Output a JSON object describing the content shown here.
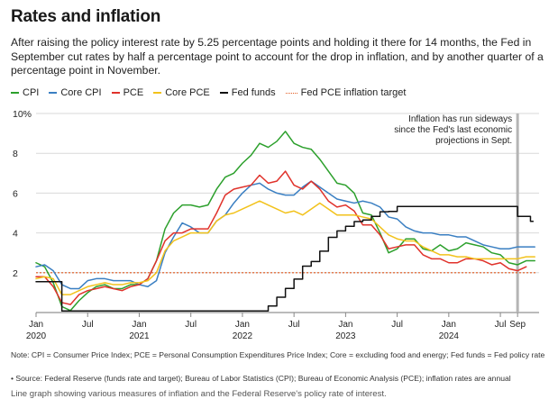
{
  "header": {
    "title": "Rates and inflation",
    "subtitle": "After raising the policy interest rate by 5.25 percentage points and holding it there for 14 months, the Fed in September cut rates by half a percentage point to account for the drop in inflation, and by another quarter of a percentage point in November."
  },
  "footer": {
    "note": "Note: CPI = Consumer Price Index; PCE = Personal Consumption Expenditures Price Index; Core = excluding food and energy; Fed funds = Fed policy rate",
    "source": "• Source: Federal Reserve (funds rate and target); Bureau of Labor Statistics (CPI); Bureau of Economic Analysis (PCE); inflation rates are annual",
    "caption": "Line graph showing various measures of inflation and the Federal Reserve's policy rate of interest."
  },
  "chart_data": {
    "type": "line",
    "title": "Rates and inflation",
    "xlabel": "",
    "ylabel": "",
    "ylim": [
      0,
      10
    ],
    "xlim": [
      0,
      58.5
    ],
    "x_unit": "months since Jan 2020",
    "y_ticks": [
      {
        "value": 2,
        "label": "2"
      },
      {
        "value": 4,
        "label": "4"
      },
      {
        "value": 6,
        "label": "6"
      },
      {
        "value": 8,
        "label": "8"
      },
      {
        "value": 10,
        "label": "10%"
      }
    ],
    "x_ticks": [
      {
        "x": 0,
        "label": "Jan",
        "year": "2020"
      },
      {
        "x": 6,
        "label": "Jul",
        "year": ""
      },
      {
        "x": 12,
        "label": "Jan",
        "year": "2021"
      },
      {
        "x": 18,
        "label": "Jul",
        "year": ""
      },
      {
        "x": 24,
        "label": "Jan",
        "year": "2022"
      },
      {
        "x": 30,
        "label": "Jul",
        "year": ""
      },
      {
        "x": 36,
        "label": "Jan",
        "year": "2023"
      },
      {
        "x": 42,
        "label": "Jul",
        "year": ""
      },
      {
        "x": 48,
        "label": "Jan",
        "year": "2024"
      },
      {
        "x": 54,
        "label": "Jul",
        "year": ""
      },
      {
        "x": 56,
        "label": "Sep",
        "year": ""
      }
    ],
    "gridlines": true,
    "legend_position": "top",
    "target": {
      "name": "Fed PCE inflation target",
      "value": 2,
      "color": "#e15a1f"
    },
    "annotation": {
      "x": 56,
      "lines": [
        "Inflation has run sideways",
        "since the Fed's last economic",
        "projections in Sept."
      ]
    },
    "series": [
      {
        "name": "CPI",
        "color": "#2ca02c",
        "width": 1.5,
        "x": [
          0,
          1,
          2,
          3,
          4,
          5,
          6,
          7,
          8,
          9,
          10,
          11,
          12,
          13,
          14,
          15,
          16,
          17,
          18,
          19,
          20,
          21,
          22,
          23,
          24,
          25,
          26,
          27,
          28,
          29,
          30,
          31,
          32,
          33,
          34,
          35,
          36,
          37,
          38,
          39,
          40,
          41,
          42,
          43,
          44,
          45,
          46,
          47,
          48,
          49,
          50,
          51,
          52,
          53,
          54,
          55,
          56,
          57
        ],
        "values": [
          2.5,
          2.3,
          1.5,
          0.3,
          0.1,
          0.6,
          1.0,
          1.3,
          1.4,
          1.2,
          1.2,
          1.4,
          1.4,
          1.7,
          2.6,
          4.2,
          5.0,
          5.4,
          5.4,
          5.3,
          5.4,
          6.2,
          6.8,
          7.0,
          7.5,
          7.9,
          8.5,
          8.3,
          8.6,
          9.1,
          8.5,
          8.3,
          8.2,
          7.7,
          7.1,
          6.5,
          6.4,
          6.0,
          5.0,
          4.9,
          4.0,
          3.0,
          3.2,
          3.7,
          3.7,
          3.2,
          3.1,
          3.4,
          3.1,
          3.2,
          3.5,
          3.4,
          3.3,
          3.0,
          2.9,
          2.5,
          2.4,
          2.6
        ],
        "end_x": 58
      },
      {
        "name": "Core CPI",
        "color": "#3a7fc2",
        "width": 1.5,
        "x": [
          0,
          1,
          2,
          3,
          4,
          5,
          6,
          7,
          8,
          9,
          10,
          11,
          12,
          13,
          14,
          15,
          16,
          17,
          18,
          19,
          20,
          21,
          22,
          23,
          24,
          25,
          26,
          27,
          28,
          29,
          30,
          31,
          32,
          33,
          34,
          35,
          36,
          37,
          38,
          39,
          40,
          41,
          42,
          43,
          44,
          45,
          46,
          47,
          48,
          49,
          50,
          51,
          52,
          53,
          54,
          55,
          56,
          57
        ],
        "values": [
          2.3,
          2.4,
          2.1,
          1.4,
          1.2,
          1.2,
          1.6,
          1.7,
          1.7,
          1.6,
          1.6,
          1.6,
          1.4,
          1.3,
          1.6,
          3.0,
          3.8,
          4.5,
          4.3,
          4.0,
          4.0,
          4.6,
          4.9,
          5.5,
          6.0,
          6.4,
          6.5,
          6.2,
          6.0,
          5.9,
          5.9,
          6.3,
          6.6,
          6.3,
          6.0,
          5.7,
          5.6,
          5.5,
          5.6,
          5.5,
          5.3,
          4.8,
          4.7,
          4.3,
          4.1,
          4.0,
          4.0,
          3.9,
          3.9,
          3.8,
          3.8,
          3.6,
          3.4,
          3.3,
          3.2,
          3.2,
          3.3,
          3.3
        ],
        "end_x": 58
      },
      {
        "name": "PCE",
        "color": "#e0322b",
        "width": 1.5,
        "x": [
          0,
          1,
          2,
          3,
          4,
          5,
          6,
          7,
          8,
          9,
          10,
          11,
          12,
          13,
          14,
          15,
          16,
          17,
          18,
          19,
          20,
          21,
          22,
          23,
          24,
          25,
          26,
          27,
          28,
          29,
          30,
          31,
          32,
          33,
          34,
          35,
          36,
          37,
          38,
          39,
          40,
          41,
          42,
          43,
          44,
          45,
          46,
          47,
          48,
          49,
          50,
          51,
          52,
          53,
          54,
          55,
          56
        ],
        "values": [
          1.8,
          1.8,
          1.3,
          0.5,
          0.4,
          0.9,
          1.1,
          1.2,
          1.3,
          1.2,
          1.1,
          1.3,
          1.4,
          1.7,
          2.6,
          3.6,
          4.0,
          4.0,
          4.2,
          4.2,
          4.2,
          5.0,
          5.9,
          6.2,
          6.3,
          6.4,
          6.9,
          6.5,
          6.6,
          7.1,
          6.4,
          6.2,
          6.6,
          6.2,
          5.6,
          5.3,
          5.4,
          5.1,
          4.4,
          4.4,
          3.9,
          3.2,
          3.3,
          3.4,
          3.4,
          2.9,
          2.7,
          2.7,
          2.5,
          2.5,
          2.7,
          2.7,
          2.6,
          2.4,
          2.5,
          2.2,
          2.1
        ],
        "end_x": 57,
        "end_value": 2.3
      },
      {
        "name": "Core PCE",
        "color": "#f2c21b",
        "width": 1.5,
        "x": [
          0,
          1,
          2,
          3,
          4,
          5,
          6,
          7,
          8,
          9,
          10,
          11,
          12,
          13,
          14,
          15,
          16,
          17,
          18,
          19,
          20,
          21,
          22,
          23,
          24,
          25,
          26,
          27,
          28,
          29,
          30,
          31,
          32,
          33,
          34,
          35,
          36,
          37,
          38,
          39,
          40,
          41,
          42,
          43,
          44,
          45,
          46,
          47,
          48,
          49,
          50,
          51,
          52,
          53,
          54,
          55,
          56,
          57
        ],
        "values": [
          1.7,
          1.8,
          1.7,
          0.9,
          0.9,
          1.1,
          1.3,
          1.4,
          1.5,
          1.4,
          1.4,
          1.5,
          1.5,
          1.6,
          2.0,
          3.1,
          3.6,
          3.8,
          4.0,
          4.0,
          4.0,
          4.6,
          4.9,
          5.0,
          5.2,
          5.4,
          5.6,
          5.4,
          5.2,
          5.0,
          5.1,
          4.9,
          5.2,
          5.5,
          5.2,
          4.9,
          4.9,
          4.9,
          4.8,
          4.7,
          4.3,
          3.9,
          3.7,
          3.6,
          3.6,
          3.3,
          3.1,
          2.9,
          2.9,
          2.8,
          2.8,
          2.7,
          2.7,
          2.7,
          2.7,
          2.7,
          2.7,
          2.8
        ],
        "end_x": 58
      },
      {
        "name": "Fed funds",
        "color": "#111111",
        "width": 1.5,
        "step": true,
        "x": [
          0,
          2,
          3,
          26,
          27,
          28,
          29,
          30,
          31,
          32,
          33,
          34,
          35,
          36,
          37,
          38,
          39,
          40,
          41,
          42,
          55,
          56,
          57,
          57.5
        ],
        "values": [
          1.55,
          1.55,
          0.08,
          0.08,
          0.33,
          0.77,
          1.21,
          1.68,
          2.33,
          2.56,
          3.08,
          3.78,
          4.1,
          4.33,
          4.57,
          4.65,
          4.83,
          5.06,
          5.08,
          5.33,
          5.33,
          4.83,
          4.83,
          4.58
        ]
      }
    ]
  }
}
